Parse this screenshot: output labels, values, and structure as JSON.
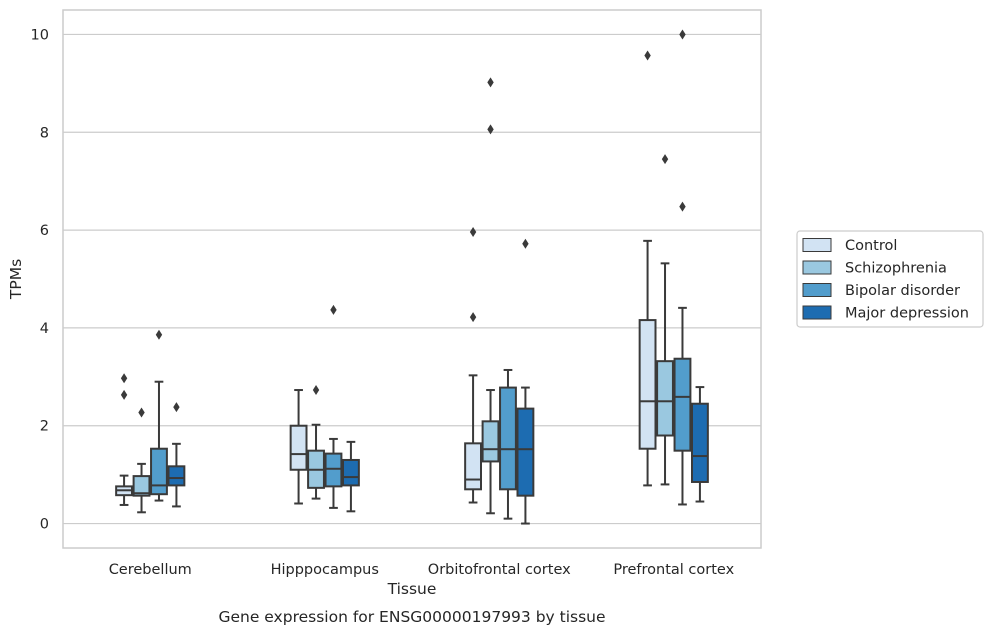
{
  "caption": "Gene expression for ENSG00000197993 by tissue",
  "colors": {
    "Control": "#d2e3f3",
    "Schizophrenia": "#9ac8e0",
    "Bipolar disorder": "#529dcc",
    "Major depression": "#1d6cb1",
    "line": "#3a3a3a",
    "grid": "#cccccc",
    "frame": "#cccccc"
  },
  "chart_data": {
    "type": "box",
    "xlabel": "Tissue",
    "ylabel": "TPMs",
    "ylim": [
      -0.5,
      10.5
    ],
    "yticks": [
      0,
      2,
      4,
      6,
      8,
      10
    ],
    "grid": "horizontal",
    "legend_position": "outside-right",
    "categories": [
      "Cerebellum",
      "Hipppocampus",
      "Orbitofrontal cortex",
      "Prefrontal cortex"
    ],
    "series": [
      {
        "name": "Control",
        "boxes": [
          {
            "whislo": 0.38,
            "q1": 0.58,
            "med": 0.68,
            "q3": 0.76,
            "whishi": 0.98,
            "fliers": [
              2.97,
              2.63
            ]
          },
          {
            "whislo": 0.41,
            "q1": 1.1,
            "med": 1.42,
            "q3": 2.0,
            "whishi": 2.73,
            "fliers": []
          },
          {
            "whislo": 0.43,
            "q1": 0.7,
            "med": 0.9,
            "q3": 1.64,
            "whishi": 3.03,
            "fliers": [
              5.96,
              4.22
            ]
          },
          {
            "whislo": 0.78,
            "q1": 1.53,
            "med": 2.5,
            "q3": 4.16,
            "whishi": 5.78,
            "fliers": [
              9.57
            ]
          }
        ]
      },
      {
        "name": "Schizophrenia",
        "boxes": [
          {
            "whislo": 0.23,
            "q1": 0.57,
            "med": 0.62,
            "q3": 0.97,
            "whishi": 1.22,
            "fliers": [
              2.27
            ]
          },
          {
            "whislo": 0.51,
            "q1": 0.73,
            "med": 1.1,
            "q3": 1.49,
            "whishi": 2.02,
            "fliers": [
              2.73
            ]
          },
          {
            "whislo": 0.21,
            "q1": 1.27,
            "med": 1.52,
            "q3": 2.09,
            "whishi": 2.73,
            "fliers": [
              9.02,
              8.06
            ]
          },
          {
            "whislo": 0.8,
            "q1": 1.8,
            "med": 2.5,
            "q3": 3.32,
            "whishi": 5.32,
            "fliers": [
              7.45
            ]
          }
        ]
      },
      {
        "name": "Bipolar disorder",
        "boxes": [
          {
            "whislo": 0.47,
            "q1": 0.6,
            "med": 0.78,
            "q3": 1.53,
            "whishi": 2.9,
            "fliers": [
              3.86
            ]
          },
          {
            "whislo": 0.32,
            "q1": 0.76,
            "med": 1.12,
            "q3": 1.43,
            "whishi": 1.73,
            "fliers": [
              4.37
            ]
          },
          {
            "whislo": 0.1,
            "q1": 0.7,
            "med": 1.52,
            "q3": 2.78,
            "whishi": 3.14,
            "fliers": []
          },
          {
            "whislo": 0.39,
            "q1": 1.49,
            "med": 2.59,
            "q3": 3.37,
            "whishi": 4.41,
            "fliers": [
              10.0,
              6.48
            ]
          }
        ]
      },
      {
        "name": "Major depression",
        "boxes": [
          {
            "whislo": 0.35,
            "q1": 0.78,
            "med": 0.93,
            "q3": 1.17,
            "whishi": 1.63,
            "fliers": [
              2.38
            ]
          },
          {
            "whislo": 0.25,
            "q1": 0.78,
            "med": 0.95,
            "q3": 1.3,
            "whishi": 1.67,
            "fliers": []
          },
          {
            "whislo": 0.0,
            "q1": 0.57,
            "med": 1.52,
            "q3": 2.35,
            "whishi": 2.78,
            "fliers": [
              5.72
            ]
          },
          {
            "whislo": 0.45,
            "q1": 0.85,
            "med": 1.38,
            "q3": 2.45,
            "whishi": 2.79,
            "fliers": []
          }
        ]
      }
    ]
  }
}
